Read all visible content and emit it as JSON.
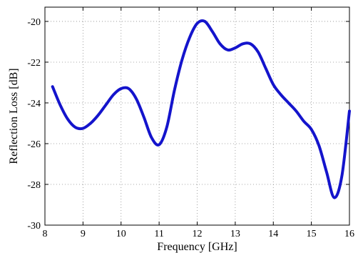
{
  "chart_data": {
    "type": "line",
    "title": "",
    "xlabel": "Frequency [GHz]",
    "ylabel": "Reflection Loss [dB]",
    "xlim": [
      8,
      16
    ],
    "ylim": [
      -30,
      -19.3
    ],
    "x_ticks": [
      8,
      9,
      10,
      11,
      12,
      13,
      14,
      15,
      16
    ],
    "y_ticks": [
      -30,
      -28,
      -26,
      -24,
      -22,
      -20
    ],
    "x_tick_labels": [
      "8",
      "9",
      "10",
      "11",
      "12",
      "13",
      "14",
      "15",
      "16"
    ],
    "y_tick_labels": [
      "-30",
      "-28",
      "-26",
      "-24",
      "-22",
      "-20"
    ],
    "grid": true,
    "line_color": "#1414cc",
    "series": [
      {
        "x": [
          8.2,
          8.4,
          8.6,
          8.8,
          9.0,
          9.2,
          9.4,
          9.6,
          9.8,
          10.0,
          10.2,
          10.4,
          10.6,
          10.8,
          11.0,
          11.2,
          11.4,
          11.6,
          11.8,
          12.0,
          12.2,
          12.4,
          12.6,
          12.8,
          13.0,
          13.2,
          13.4,
          13.6,
          13.8,
          14.0,
          14.2,
          14.4,
          14.6,
          14.8,
          15.0,
          15.2,
          15.4,
          15.6,
          15.8,
          16.0
        ],
        "y": [
          -23.2,
          -24.1,
          -24.8,
          -25.2,
          -25.25,
          -25.0,
          -24.6,
          -24.1,
          -23.6,
          -23.3,
          -23.3,
          -23.8,
          -24.7,
          -25.7,
          -26.05,
          -25.2,
          -23.4,
          -21.9,
          -20.8,
          -20.1,
          -20.0,
          -20.5,
          -21.1,
          -21.4,
          -21.3,
          -21.1,
          -21.1,
          -21.5,
          -22.3,
          -23.1,
          -23.6,
          -24.0,
          -24.4,
          -24.9,
          -25.3,
          -26.1,
          -27.4,
          -28.65,
          -27.6,
          -24.4
        ]
      }
    ]
  }
}
